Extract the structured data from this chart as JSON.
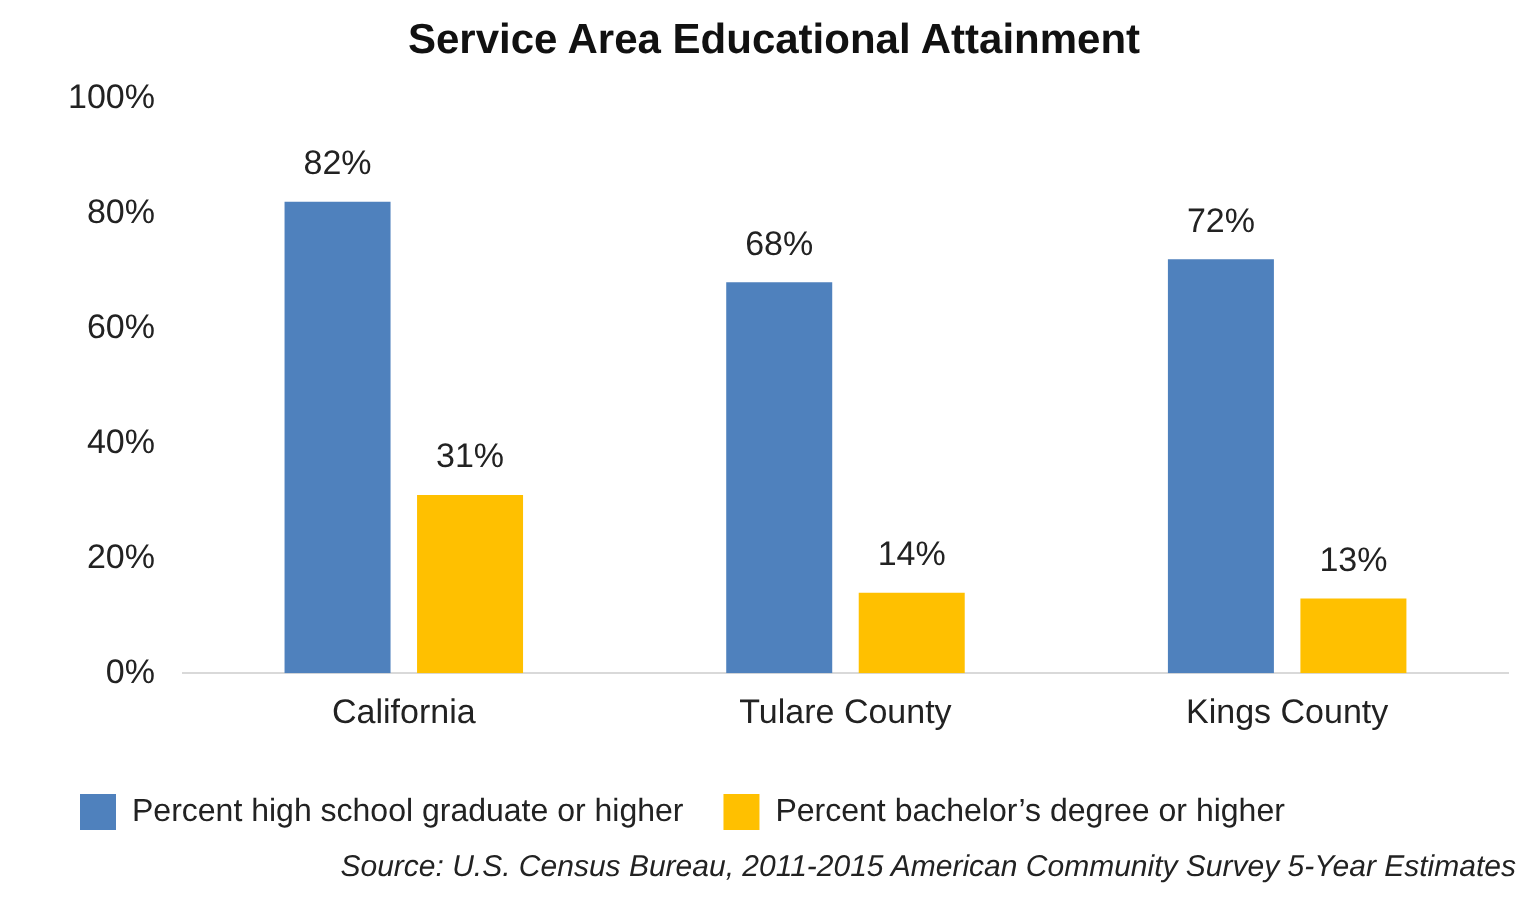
{
  "chart_data": {
    "type": "bar",
    "title": "Service Area Educational Attainment",
    "categories": [
      "California",
      "Tulare County",
      "Kings County"
    ],
    "series": [
      {
        "name": "Percent high school graduate or higher",
        "color": "#4f81bd",
        "values": [
          82,
          68,
          72
        ],
        "value_labels": [
          "82%",
          "68%",
          "72%"
        ]
      },
      {
        "name": "Percent bachelor’s degree or higher",
        "color": "#ffc000",
        "values": [
          31,
          14,
          13
        ],
        "value_labels": [
          "31%",
          "14%",
          "13%"
        ]
      }
    ],
    "ylim": [
      0,
      100
    ],
    "yticks": [
      {
        "value": 0,
        "label": "0%"
      },
      {
        "value": 20,
        "label": "20%"
      },
      {
        "value": 40,
        "label": "40%"
      },
      {
        "value": 60,
        "label": "60%"
      },
      {
        "value": 80,
        "label": "80%"
      },
      {
        "value": 100,
        "label": "100%"
      }
    ],
    "grid": false,
    "legend": "bottom",
    "annotations": [
      "Source: U.S. Census Bureau, 2011-2015 American Community Survey 5-Year Estimates"
    ]
  }
}
